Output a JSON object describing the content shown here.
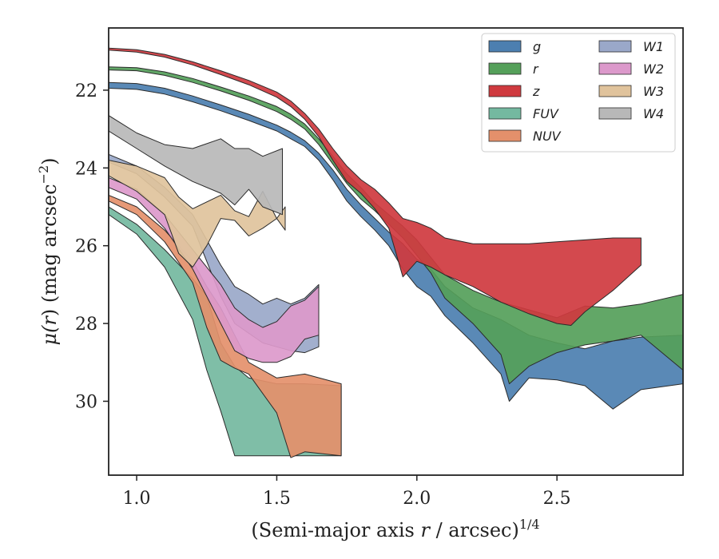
{
  "chart_data": {
    "type": "area",
    "title": "",
    "xlabel": "(Semi-major axis r / arcsec)",
    "xlabel_main": "(Semi-major axis ",
    "xlabel_var": "r",
    "xlabel_unit": " / arcsec)",
    "xlabel_exp": "1/4",
    "ylabel": "μ(r) (mag arcsec⁻²)",
    "ylabel_mu": "μ(",
    "ylabel_var": "r",
    "ylabel_rest": ") (mag arcsec",
    "ylabel_exp": "−2",
    "ylabel_close": ")",
    "xlim": [
      0.9,
      2.95
    ],
    "ylim": [
      20.4,
      31.9
    ],
    "y_inverted": true,
    "xticks": [
      1.0,
      1.5,
      2.0,
      2.5
    ],
    "xtick_labels": [
      "1.0",
      "1.5",
      "2.0",
      "2.5"
    ],
    "yticks": [
      22,
      24,
      26,
      28,
      30
    ],
    "ytick_labels": [
      "22",
      "24",
      "26",
      "28",
      "30"
    ],
    "grid": false,
    "legend_position": "top-right",
    "legend_columns": 2,
    "series": [
      {
        "name": "g",
        "color": "#4c7fb0",
        "upper": [
          [
            0.9,
            21.8
          ],
          [
            1.0,
            21.83
          ],
          [
            1.1,
            21.95
          ],
          [
            1.2,
            22.15
          ],
          [
            1.3,
            22.38
          ],
          [
            1.4,
            22.62
          ],
          [
            1.5,
            22.9
          ],
          [
            1.55,
            23.08
          ],
          [
            1.6,
            23.3
          ],
          [
            1.65,
            23.62
          ],
          [
            1.7,
            24.05
          ],
          [
            1.75,
            24.55
          ],
          [
            1.8,
            24.95
          ],
          [
            1.85,
            25.3
          ],
          [
            1.9,
            25.65
          ],
          [
            1.95,
            25.95
          ],
          [
            2.0,
            26.35
          ],
          [
            2.05,
            26.6
          ],
          [
            2.1,
            27.05
          ],
          [
            2.2,
            27.6
          ],
          [
            2.3,
            27.9
          ],
          [
            2.4,
            28.3
          ],
          [
            2.5,
            28.5
          ],
          [
            2.6,
            28.65
          ],
          [
            2.7,
            28.45
          ],
          [
            2.8,
            28.35
          ],
          [
            2.95,
            28.3
          ]
        ],
        "lower": [
          [
            0.9,
            21.95
          ],
          [
            1.0,
            21.98
          ],
          [
            1.1,
            22.1
          ],
          [
            1.2,
            22.3
          ],
          [
            1.3,
            22.53
          ],
          [
            1.4,
            22.78
          ],
          [
            1.5,
            23.05
          ],
          [
            1.55,
            23.25
          ],
          [
            1.6,
            23.45
          ],
          [
            1.65,
            23.8
          ],
          [
            1.7,
            24.3
          ],
          [
            1.75,
            24.85
          ],
          [
            1.8,
            25.25
          ],
          [
            1.85,
            25.6
          ],
          [
            1.9,
            26.0
          ],
          [
            1.95,
            26.6
          ],
          [
            2.0,
            27.05
          ],
          [
            2.05,
            27.3
          ],
          [
            2.1,
            27.8
          ],
          [
            2.2,
            28.5
          ],
          [
            2.3,
            29.3
          ],
          [
            2.33,
            30.0
          ],
          [
            2.4,
            29.4
          ],
          [
            2.5,
            29.45
          ],
          [
            2.6,
            29.6
          ],
          [
            2.7,
            30.2
          ],
          [
            2.8,
            29.7
          ],
          [
            2.95,
            29.55
          ]
        ]
      },
      {
        "name": "r",
        "color": "#55a05a",
        "upper": [
          [
            0.9,
            21.4
          ],
          [
            1.0,
            21.42
          ],
          [
            1.1,
            21.53
          ],
          [
            1.2,
            21.7
          ],
          [
            1.3,
            21.92
          ],
          [
            1.4,
            22.15
          ],
          [
            1.5,
            22.42
          ],
          [
            1.55,
            22.62
          ],
          [
            1.6,
            22.87
          ],
          [
            1.65,
            23.25
          ],
          [
            1.7,
            23.7
          ],
          [
            1.75,
            24.15
          ],
          [
            1.8,
            24.5
          ],
          [
            1.85,
            24.9
          ],
          [
            1.9,
            25.2
          ],
          [
            1.95,
            25.5
          ],
          [
            2.0,
            25.85
          ],
          [
            2.05,
            26.3
          ],
          [
            2.1,
            26.75
          ],
          [
            2.2,
            27.15
          ],
          [
            2.3,
            27.45
          ],
          [
            2.4,
            27.65
          ],
          [
            2.5,
            27.85
          ],
          [
            2.6,
            27.55
          ],
          [
            2.7,
            27.6
          ],
          [
            2.8,
            27.5
          ],
          [
            2.95,
            27.25
          ]
        ],
        "lower": [
          [
            0.9,
            21.48
          ],
          [
            1.0,
            21.5
          ],
          [
            1.1,
            21.62
          ],
          [
            1.2,
            21.8
          ],
          [
            1.3,
            22.02
          ],
          [
            1.4,
            22.26
          ],
          [
            1.5,
            22.55
          ],
          [
            1.55,
            22.75
          ],
          [
            1.6,
            23.0
          ],
          [
            1.65,
            23.4
          ],
          [
            1.7,
            23.9
          ],
          [
            1.75,
            24.4
          ],
          [
            1.8,
            24.8
          ],
          [
            1.85,
            25.1
          ],
          [
            1.9,
            25.45
          ],
          [
            1.95,
            25.8
          ],
          [
            2.0,
            26.25
          ],
          [
            2.05,
            26.7
          ],
          [
            2.1,
            27.35
          ],
          [
            2.2,
            28.0
          ],
          [
            2.3,
            28.8
          ],
          [
            2.33,
            29.55
          ],
          [
            2.4,
            29.1
          ],
          [
            2.5,
            28.75
          ],
          [
            2.6,
            28.55
          ],
          [
            2.7,
            28.45
          ],
          [
            2.8,
            28.3
          ],
          [
            2.95,
            29.2
          ]
        ]
      },
      {
        "name": "z",
        "color": "#cf3a3f",
        "upper": [
          [
            0.9,
            20.92
          ],
          [
            1.0,
            20.96
          ],
          [
            1.1,
            21.08
          ],
          [
            1.2,
            21.27
          ],
          [
            1.3,
            21.5
          ],
          [
            1.4,
            21.75
          ],
          [
            1.5,
            22.05
          ],
          [
            1.55,
            22.28
          ],
          [
            1.6,
            22.6
          ],
          [
            1.65,
            23.0
          ],
          [
            1.7,
            23.5
          ],
          [
            1.75,
            23.95
          ],
          [
            1.8,
            24.3
          ],
          [
            1.85,
            24.55
          ],
          [
            1.9,
            24.9
          ],
          [
            1.95,
            25.3
          ],
          [
            2.0,
            25.4
          ],
          [
            2.05,
            25.55
          ],
          [
            2.1,
            25.8
          ],
          [
            2.2,
            25.95
          ],
          [
            2.3,
            25.95
          ],
          [
            2.4,
            25.95
          ],
          [
            2.5,
            25.9
          ],
          [
            2.6,
            25.85
          ],
          [
            2.7,
            25.8
          ],
          [
            2.8,
            25.8
          ]
        ],
        "lower": [
          [
            0.9,
            20.97
          ],
          [
            1.0,
            21.02
          ],
          [
            1.1,
            21.15
          ],
          [
            1.2,
            21.35
          ],
          [
            1.3,
            21.6
          ],
          [
            1.4,
            21.86
          ],
          [
            1.5,
            22.18
          ],
          [
            1.55,
            22.42
          ],
          [
            1.6,
            22.75
          ],
          [
            1.65,
            23.2
          ],
          [
            1.7,
            23.8
          ],
          [
            1.75,
            24.35
          ],
          [
            1.8,
            24.65
          ],
          [
            1.85,
            25.05
          ],
          [
            1.9,
            25.55
          ],
          [
            1.95,
            26.8
          ],
          [
            2.0,
            26.4
          ],
          [
            2.05,
            26.55
          ],
          [
            2.1,
            26.75
          ],
          [
            2.2,
            27.05
          ],
          [
            2.3,
            27.45
          ],
          [
            2.4,
            27.75
          ],
          [
            2.5,
            28.0
          ],
          [
            2.55,
            28.05
          ],
          [
            2.6,
            27.7
          ],
          [
            2.7,
            27.15
          ],
          [
            2.8,
            26.5
          ]
        ]
      },
      {
        "name": "FUV",
        "color": "#74b9a0",
        "upper": [
          [
            0.9,
            25.0
          ],
          [
            1.0,
            25.45
          ],
          [
            1.1,
            26.1
          ],
          [
            1.2,
            26.85
          ],
          [
            1.25,
            27.3
          ],
          [
            1.3,
            28.5
          ],
          [
            1.35,
            29.1
          ],
          [
            1.4,
            29.4
          ],
          [
            1.5,
            29.55
          ],
          [
            1.6,
            29.55
          ],
          [
            1.73,
            29.6
          ]
        ],
        "lower": [
          [
            0.9,
            25.2
          ],
          [
            1.0,
            25.7
          ],
          [
            1.1,
            26.55
          ],
          [
            1.2,
            27.9
          ],
          [
            1.25,
            29.2
          ],
          [
            1.3,
            30.25
          ],
          [
            1.35,
            31.4
          ],
          [
            1.4,
            31.4
          ],
          [
            1.5,
            31.4
          ],
          [
            1.6,
            31.4
          ],
          [
            1.73,
            31.4
          ]
        ]
      },
      {
        "name": "NUV",
        "color": "#e4906b",
        "upper": [
          [
            0.9,
            24.7
          ],
          [
            1.0,
            25.0
          ],
          [
            1.1,
            25.6
          ],
          [
            1.2,
            26.4
          ],
          [
            1.25,
            27.05
          ],
          [
            1.3,
            27.6
          ],
          [
            1.35,
            28.3
          ],
          [
            1.4,
            29.0
          ],
          [
            1.5,
            29.4
          ],
          [
            1.6,
            29.3
          ],
          [
            1.73,
            29.55
          ]
        ],
        "lower": [
          [
            0.9,
            24.85
          ],
          [
            1.0,
            25.2
          ],
          [
            1.1,
            25.9
          ],
          [
            1.2,
            26.95
          ],
          [
            1.25,
            28.1
          ],
          [
            1.3,
            28.95
          ],
          [
            1.35,
            29.15
          ],
          [
            1.4,
            29.3
          ],
          [
            1.5,
            30.3
          ],
          [
            1.55,
            31.45
          ],
          [
            1.6,
            31.3
          ],
          [
            1.73,
            31.4
          ]
        ]
      },
      {
        "name": "W1",
        "color": "#9aa8c9",
        "upper": [
          [
            0.9,
            23.65
          ],
          [
            1.0,
            23.95
          ],
          [
            1.1,
            24.5
          ],
          [
            1.2,
            25.2
          ],
          [
            1.3,
            26.5
          ],
          [
            1.35,
            27.05
          ],
          [
            1.4,
            27.25
          ],
          [
            1.45,
            27.5
          ],
          [
            1.5,
            27.35
          ],
          [
            1.55,
            27.5
          ],
          [
            1.6,
            27.35
          ],
          [
            1.65,
            27.0
          ]
        ],
        "lower": [
          [
            0.9,
            23.85
          ],
          [
            1.0,
            24.15
          ],
          [
            1.1,
            24.75
          ],
          [
            1.2,
            25.5
          ],
          [
            1.3,
            27.3
          ],
          [
            1.35,
            28.0
          ],
          [
            1.4,
            28.25
          ],
          [
            1.45,
            28.5
          ],
          [
            1.5,
            28.6
          ],
          [
            1.55,
            28.7
          ],
          [
            1.6,
            28.75
          ],
          [
            1.65,
            28.6
          ]
        ]
      },
      {
        "name": "W2",
        "color": "#dc99cb",
        "upper": [
          [
            0.9,
            24.25
          ],
          [
            1.0,
            24.55
          ],
          [
            1.1,
            25.2
          ],
          [
            1.2,
            26.1
          ],
          [
            1.3,
            27.0
          ],
          [
            1.35,
            27.6
          ],
          [
            1.4,
            27.9
          ],
          [
            1.45,
            28.1
          ],
          [
            1.5,
            27.95
          ],
          [
            1.55,
            27.55
          ],
          [
            1.6,
            27.4
          ],
          [
            1.65,
            27.05
          ]
        ],
        "lower": [
          [
            0.9,
            24.5
          ],
          [
            1.0,
            24.8
          ],
          [
            1.1,
            25.55
          ],
          [
            1.2,
            26.6
          ],
          [
            1.3,
            28.0
          ],
          [
            1.35,
            28.7
          ],
          [
            1.4,
            28.9
          ],
          [
            1.45,
            29.0
          ],
          [
            1.5,
            29.0
          ],
          [
            1.55,
            28.85
          ],
          [
            1.6,
            28.4
          ],
          [
            1.65,
            28.3
          ]
        ]
      },
      {
        "name": "W3",
        "color": "#e0c39c",
        "upper": [
          [
            0.9,
            23.8
          ],
          [
            1.0,
            23.95
          ],
          [
            1.1,
            24.25
          ],
          [
            1.15,
            24.75
          ],
          [
            1.2,
            25.05
          ],
          [
            1.3,
            24.7
          ],
          [
            1.35,
            25.1
          ],
          [
            1.4,
            25.25
          ],
          [
            1.45,
            24.6
          ],
          [
            1.5,
            25.3
          ],
          [
            1.53,
            25.0
          ]
        ],
        "lower": [
          [
            0.9,
            24.2
          ],
          [
            1.0,
            24.6
          ],
          [
            1.1,
            25.2
          ],
          [
            1.15,
            26.2
          ],
          [
            1.2,
            26.55
          ],
          [
            1.25,
            26.0
          ],
          [
            1.3,
            25.3
          ],
          [
            1.35,
            25.35
          ],
          [
            1.4,
            25.75
          ],
          [
            1.45,
            25.55
          ],
          [
            1.5,
            25.3
          ],
          [
            1.53,
            25.6
          ]
        ]
      },
      {
        "name": "W4",
        "color": "#b8b8b8",
        "upper": [
          [
            0.9,
            22.65
          ],
          [
            1.0,
            23.1
          ],
          [
            1.1,
            23.4
          ],
          [
            1.2,
            23.5
          ],
          [
            1.3,
            23.25
          ],
          [
            1.35,
            23.5
          ],
          [
            1.4,
            23.5
          ],
          [
            1.45,
            23.7
          ],
          [
            1.52,
            23.5
          ]
        ],
        "lower": [
          [
            0.9,
            23.05
          ],
          [
            1.0,
            23.5
          ],
          [
            1.1,
            23.95
          ],
          [
            1.2,
            24.35
          ],
          [
            1.3,
            24.65
          ],
          [
            1.35,
            24.95
          ],
          [
            1.4,
            24.55
          ],
          [
            1.45,
            25.0
          ],
          [
            1.52,
            25.2
          ]
        ]
      }
    ]
  }
}
